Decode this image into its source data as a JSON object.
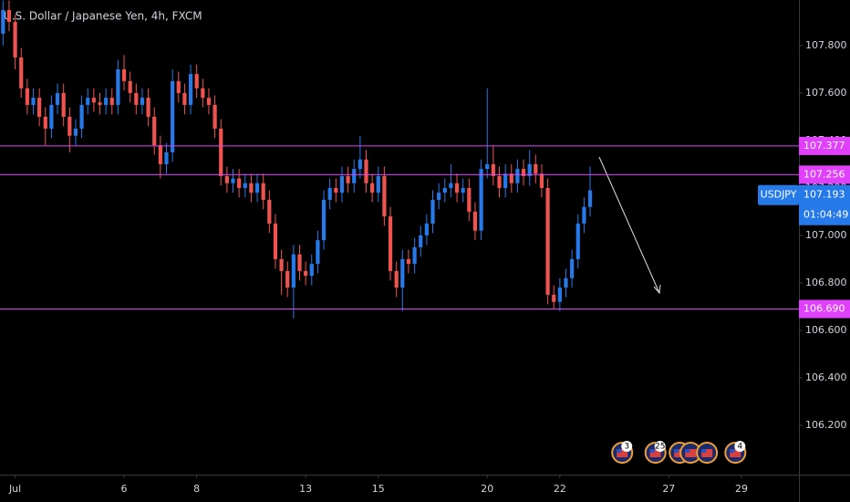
{
  "chart_data": {
    "type": "candlestick",
    "title": "U.S. Dollar / Japanese Yen, 4h, FXCM",
    "up_color": "#2679e8",
    "down_color": "#ef5350",
    "level_color": "#e040fb",
    "ylim": [
      105.992,
      107.992
    ],
    "yticks": [
      {
        "value": 107.8,
        "label": "107.800"
      },
      {
        "value": 107.6,
        "label": "107.600"
      },
      {
        "value": 107.4,
        "label": "107.400"
      },
      {
        "value": 107.2,
        "label": "107.200"
      },
      {
        "value": 107.0,
        "label": "107.000"
      },
      {
        "value": 106.8,
        "label": "106.800"
      },
      {
        "value": 106.6,
        "label": "106.600"
      },
      {
        "value": 106.4,
        "label": "106.400"
      },
      {
        "value": 106.2,
        "label": "106.200"
      }
    ],
    "xlim": [
      -0.5,
      131.5
    ],
    "xticks": [
      {
        "value": 2,
        "label": "Jul"
      },
      {
        "value": 20,
        "label": "6"
      },
      {
        "value": 32,
        "label": "8"
      },
      {
        "value": 50,
        "label": "13"
      },
      {
        "value": 62,
        "label": "15"
      },
      {
        "value": 80,
        "label": "20"
      },
      {
        "value": 92,
        "label": "22"
      },
      {
        "value": 110,
        "label": "27"
      },
      {
        "value": 122,
        "label": "29"
      }
    ],
    "x": [
      0,
      1,
      2,
      3,
      4,
      5,
      6,
      7,
      8,
      9,
      10,
      11,
      12,
      13,
      14,
      15,
      16,
      17,
      18,
      19,
      20,
      21,
      22,
      23,
      24,
      25,
      26,
      27,
      28,
      29,
      30,
      31,
      32,
      33,
      34,
      35,
      36,
      37,
      38,
      39,
      40,
      41,
      42,
      43,
      44,
      45,
      46,
      47,
      48,
      49,
      50,
      51,
      52,
      53,
      54,
      55,
      56,
      57,
      58,
      59,
      60,
      61,
      62,
      63,
      64,
      65,
      66,
      67,
      68,
      69,
      70,
      71,
      72,
      73,
      74,
      75,
      76,
      77,
      78,
      79,
      80,
      81,
      82,
      83,
      84,
      85,
      86,
      87,
      88,
      89,
      90,
      91,
      92,
      93,
      94,
      95,
      96,
      97
    ],
    "ohlc": [
      [
        107.85,
        107.99,
        107.8,
        107.95
      ],
      [
        107.95,
        107.99,
        107.86,
        107.9
      ],
      [
        107.9,
        107.93,
        107.7,
        107.75
      ],
      [
        107.75,
        107.79,
        107.58,
        107.62
      ],
      [
        107.62,
        107.66,
        107.51,
        107.55
      ],
      [
        107.55,
        107.62,
        107.51,
        107.58
      ],
      [
        107.58,
        107.62,
        107.46,
        107.5
      ],
      [
        107.5,
        107.54,
        107.38,
        107.45
      ],
      [
        107.45,
        107.59,
        107.41,
        107.55
      ],
      [
        107.55,
        107.64,
        107.51,
        107.6
      ],
      [
        107.6,
        107.64,
        107.46,
        107.5
      ],
      [
        107.5,
        107.54,
        107.35,
        107.42
      ],
      [
        107.42,
        107.49,
        107.38,
        107.45
      ],
      [
        107.45,
        107.59,
        107.41,
        107.55
      ],
      [
        107.55,
        107.62,
        107.51,
        107.58
      ],
      [
        107.58,
        107.62,
        107.52,
        107.56
      ],
      [
        107.56,
        107.6,
        107.51,
        107.55
      ],
      [
        107.55,
        107.62,
        107.51,
        107.58
      ],
      [
        107.58,
        107.62,
        107.51,
        107.55
      ],
      [
        107.55,
        107.74,
        107.51,
        107.7
      ],
      [
        107.7,
        107.76,
        107.61,
        107.65
      ],
      [
        107.65,
        107.69,
        107.56,
        107.6
      ],
      [
        107.6,
        107.64,
        107.51,
        107.55
      ],
      [
        107.55,
        107.62,
        107.51,
        107.58
      ],
      [
        107.58,
        107.62,
        107.46,
        107.5
      ],
      [
        107.5,
        107.54,
        107.34,
        107.38
      ],
      [
        107.38,
        107.42,
        107.24,
        107.3
      ],
      [
        107.3,
        107.39,
        107.26,
        107.35
      ],
      [
        107.35,
        107.7,
        107.31,
        107.65
      ],
      [
        107.65,
        107.69,
        107.56,
        107.6
      ],
      [
        107.6,
        107.64,
        107.51,
        107.55
      ],
      [
        107.55,
        107.72,
        107.51,
        107.68
      ],
      [
        107.68,
        107.72,
        107.58,
        107.62
      ],
      [
        107.62,
        107.66,
        107.54,
        107.58
      ],
      [
        107.58,
        107.62,
        107.51,
        107.55
      ],
      [
        107.55,
        107.59,
        107.41,
        107.45
      ],
      [
        107.45,
        107.49,
        107.21,
        107.25
      ],
      [
        107.25,
        107.29,
        107.18,
        107.22
      ],
      [
        107.22,
        107.28,
        107.18,
        107.24
      ],
      [
        107.24,
        107.28,
        107.16,
        107.2
      ],
      [
        107.2,
        107.26,
        107.16,
        107.22
      ],
      [
        107.22,
        107.26,
        107.14,
        107.18
      ],
      [
        107.18,
        107.26,
        107.14,
        107.22
      ],
      [
        107.22,
        107.26,
        107.11,
        107.15
      ],
      [
        107.15,
        107.19,
        107.01,
        107.05
      ],
      [
        107.05,
        107.09,
        106.86,
        106.9
      ],
      [
        106.9,
        106.94,
        106.75,
        106.85
      ],
      [
        106.85,
        106.89,
        106.74,
        106.78
      ],
      [
        106.78,
        106.96,
        106.65,
        106.92
      ],
      [
        106.92,
        106.96,
        106.81,
        106.85
      ],
      [
        106.85,
        106.89,
        106.79,
        106.83
      ],
      [
        106.83,
        106.92,
        106.79,
        106.88
      ],
      [
        106.88,
        107.02,
        106.84,
        106.98
      ],
      [
        106.98,
        107.19,
        106.94,
        107.15
      ],
      [
        107.15,
        107.24,
        107.11,
        107.2
      ],
      [
        107.2,
        107.24,
        107.14,
        107.18
      ],
      [
        107.18,
        107.29,
        107.14,
        107.25
      ],
      [
        107.25,
        107.29,
        107.18,
        107.22
      ],
      [
        107.22,
        107.32,
        107.18,
        107.28
      ],
      [
        107.28,
        107.42,
        107.24,
        107.32
      ],
      [
        107.32,
        107.36,
        107.18,
        107.22
      ],
      [
        107.22,
        107.26,
        107.14,
        107.18
      ],
      [
        107.18,
        107.29,
        107.14,
        107.25
      ],
      [
        107.25,
        107.29,
        107.04,
        107.08
      ],
      [
        107.08,
        107.12,
        106.81,
        106.85
      ],
      [
        106.85,
        106.89,
        106.74,
        106.78
      ],
      [
        106.78,
        106.94,
        106.68,
        106.9
      ],
      [
        106.9,
        106.94,
        106.84,
        106.88
      ],
      [
        106.88,
        106.99,
        106.84,
        106.95
      ],
      [
        106.95,
        107.04,
        106.91,
        107.0
      ],
      [
        107.0,
        107.09,
        106.96,
        107.05
      ],
      [
        107.05,
        107.19,
        107.01,
        107.15
      ],
      [
        107.15,
        107.22,
        107.11,
        107.18
      ],
      [
        107.18,
        107.24,
        107.14,
        107.2
      ],
      [
        107.2,
        107.3,
        107.16,
        107.22
      ],
      [
        107.22,
        107.26,
        107.14,
        107.18
      ],
      [
        107.18,
        107.24,
        107.14,
        107.2
      ],
      [
        107.2,
        107.24,
        107.06,
        107.1
      ],
      [
        107.1,
        107.14,
        106.98,
        107.02
      ],
      [
        107.02,
        107.32,
        106.98,
        107.28
      ],
      [
        107.28,
        107.62,
        107.24,
        107.3
      ],
      [
        107.3,
        107.38,
        107.21,
        107.25
      ],
      [
        107.25,
        107.29,
        107.16,
        107.2
      ],
      [
        107.2,
        107.3,
        107.16,
        107.26
      ],
      [
        107.26,
        107.3,
        107.18,
        107.22
      ],
      [
        107.22,
        107.32,
        107.18,
        107.28
      ],
      [
        107.28,
        107.32,
        107.21,
        107.25
      ],
      [
        107.25,
        107.36,
        107.21,
        107.3
      ],
      [
        107.3,
        107.34,
        107.22,
        107.26
      ],
      [
        107.26,
        107.3,
        107.16,
        107.2
      ],
      [
        107.2,
        107.24,
        106.71,
        106.75
      ],
      [
        106.75,
        106.79,
        106.69,
        106.72
      ],
      [
        106.72,
        106.82,
        106.68,
        106.78
      ],
      [
        106.78,
        106.86,
        106.74,
        106.82
      ],
      [
        106.82,
        106.94,
        106.78,
        106.9
      ],
      [
        106.9,
        107.09,
        106.86,
        107.05
      ],
      [
        107.05,
        107.16,
        107.01,
        107.12
      ],
      [
        107.12,
        107.29,
        107.08,
        107.19
      ]
    ],
    "levels": [
      {
        "value": 107.377,
        "label": "107.377"
      },
      {
        "value": 107.256,
        "label": "107.256"
      },
      {
        "value": 106.69,
        "label": "106.690"
      }
    ],
    "last_price": {
      "name": "USDJPY",
      "value": 107.193,
      "countdown": "01:04:49"
    },
    "events": [
      {
        "x": 102.3,
        "label": "3"
      },
      {
        "x": 107.8,
        "label": "25"
      },
      {
        "x": 111.8
      },
      {
        "x": 113.6
      },
      {
        "x": 116.3
      },
      {
        "x": 121,
        "label": "4"
      }
    ]
  }
}
